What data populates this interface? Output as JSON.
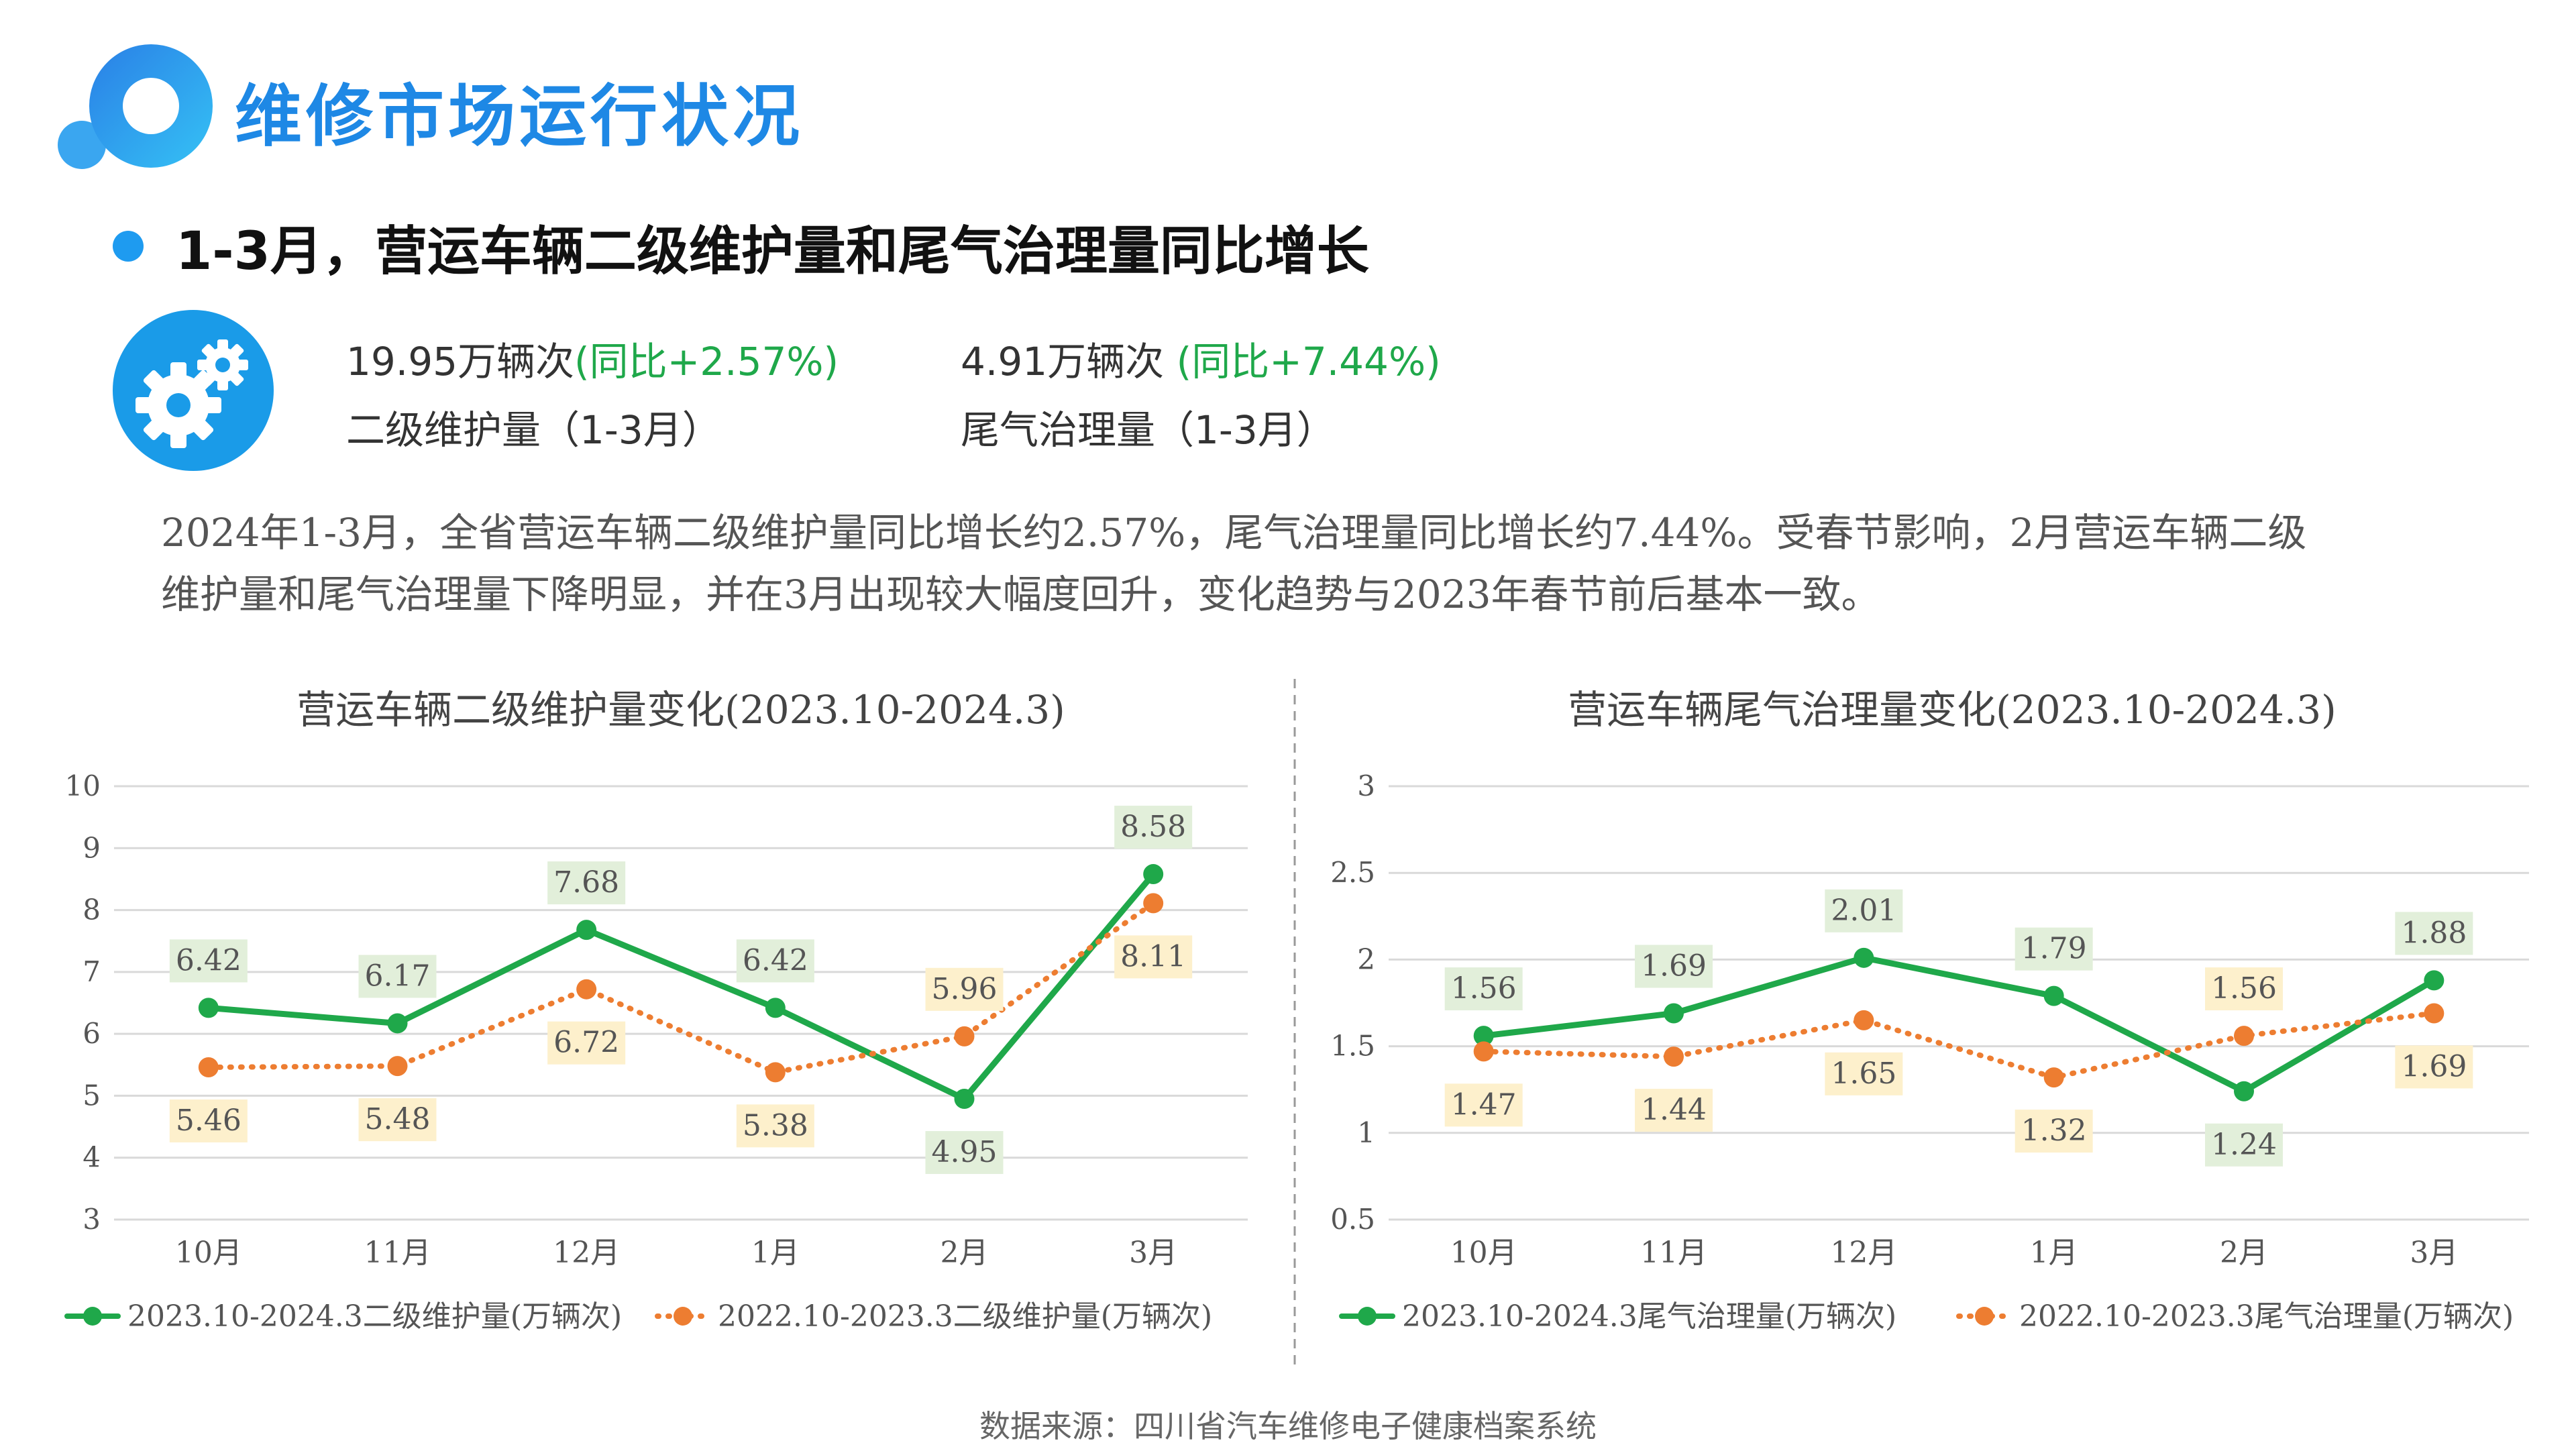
{
  "header": {
    "title": "维修市场运行状况",
    "subtitle": "1-3月，营运车辆二级维护量和尾气治理量同比增长"
  },
  "stats": {
    "maintenance": {
      "value": "19.95万辆次",
      "yoy": "(同比+2.57%)",
      "label": "二级维护量（1-3月）"
    },
    "emission": {
      "value": "4.91万辆次",
      "yoy": "(同比+7.44%)",
      "label": "尾气治理量（1-3月）"
    }
  },
  "paragraph": {
    "line1": "2024年1-3月，全省营运车辆二级维护量同比增长约2.57%，尾气治理量同比增长约7.44%。受春节影响，2月营运车辆二级",
    "line2": "维护量和尾气治理量下降明显，并在3月出现较大幅度回升，变化趋势与2023年春节前后基本一致。"
  },
  "colors": {
    "green": "#1fa84a",
    "orange": "#ed7d31",
    "blue": "#1e88e5",
    "green_label_bg": "#e2efda",
    "orange_label_bg": "#fdf0cc"
  },
  "chart_data": [
    {
      "type": "line",
      "title": "营运车辆二级维护量变化(2023.10-2024.3)",
      "categories": [
        "10月",
        "11月",
        "12月",
        "1月",
        "2月",
        "3月"
      ],
      "ylim": [
        3,
        10
      ],
      "yticks": [
        "3",
        "4",
        "5",
        "6",
        "7",
        "8",
        "9",
        "10"
      ],
      "ytick_values": [
        3,
        4,
        5,
        6,
        7,
        8,
        9,
        10
      ],
      "grid": true,
      "legend_position": "bottom",
      "series": [
        {
          "name": "2023.10-2024.3二级维护量(万辆次)",
          "values": [
            6.42,
            6.17,
            7.68,
            6.42,
            4.95,
            8.58
          ],
          "labels": [
            "6.42",
            "6.17",
            "7.68",
            "6.42",
            "4.95",
            "8.58"
          ],
          "style": "solid",
          "color": "#1fa84a"
        },
        {
          "name": "2022.10-2023.3二级维护量(万辆次)",
          "values": [
            5.46,
            5.48,
            6.72,
            5.38,
            5.96,
            8.11
          ],
          "labels": [
            "5.46",
            "5.48",
            "6.72",
            "5.38",
            "5.96",
            "8.11"
          ],
          "style": "dotted",
          "color": "#ed7d31"
        }
      ]
    },
    {
      "type": "line",
      "title": "营运车辆尾气治理量变化(2023.10-2024.3)",
      "categories": [
        "10月",
        "11月",
        "12月",
        "1月",
        "2月",
        "3月"
      ],
      "ylim": [
        0.5,
        3
      ],
      "yticks": [
        "0.5",
        "1",
        "1.5",
        "2",
        "2.5",
        "3"
      ],
      "ytick_values": [
        0.5,
        1,
        1.5,
        2,
        2.5,
        3
      ],
      "grid": true,
      "legend_position": "bottom",
      "series": [
        {
          "name": "2023.10-2024.3尾气治理量(万辆次)",
          "values": [
            1.56,
            1.69,
            2.01,
            1.79,
            1.24,
            1.88
          ],
          "labels": [
            "1.56",
            "1.69",
            "2.01",
            "1.79",
            "1.24",
            "1.88"
          ],
          "style": "solid",
          "color": "#1fa84a"
        },
        {
          "name": "2022.10-2023.3尾气治理量(万辆次)",
          "values": [
            1.47,
            1.44,
            1.65,
            1.32,
            1.56,
            1.69
          ],
          "labels": [
            "1.47",
            "1.44",
            "1.65",
            "1.32",
            "1.56",
            "1.69"
          ],
          "style": "dotted",
          "color": "#ed7d31"
        }
      ]
    }
  ],
  "footer": {
    "source": "数据来源：四川省汽车维修电子健康档案系统"
  }
}
